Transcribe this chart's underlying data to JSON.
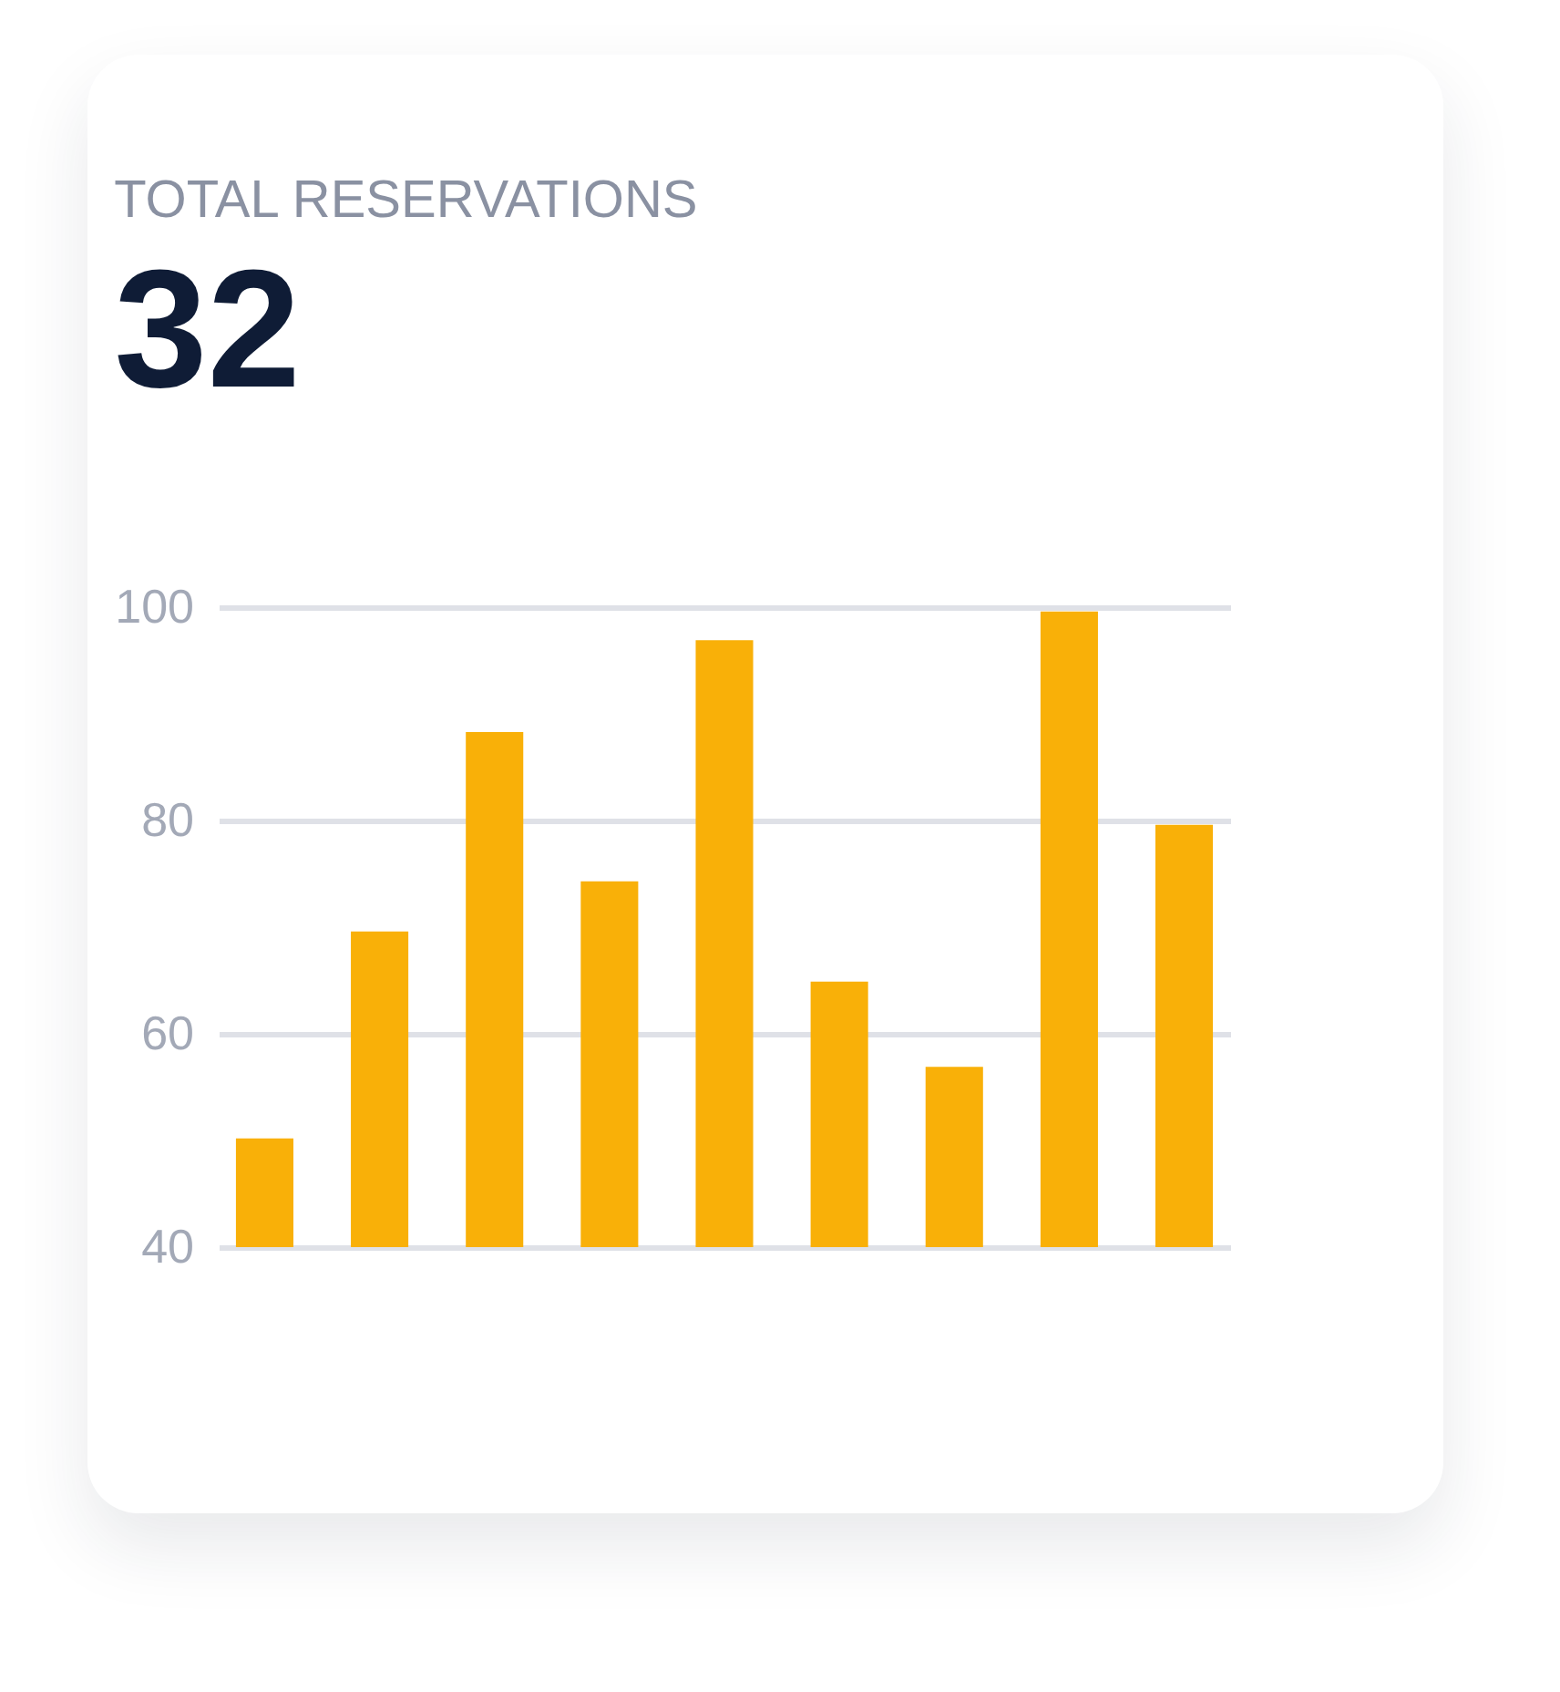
{
  "chart_data": {
    "type": "bar",
    "title": "TOTAL RESERVATIONS",
    "subtitle": "32",
    "categories": [
      null,
      null,
      null,
      null,
      null,
      null,
      null,
      null,
      null
    ],
    "values": [
      50.2,
      69.6,
      88.3,
      74.3,
      96.9,
      64.9,
      56.9,
      99.6,
      79.6
    ],
    "color": "#f9b008",
    "ylim": [
      40,
      100
    ],
    "yticks": [
      40,
      60,
      80,
      100
    ],
    "grid": "y",
    "tick_labels": "y"
  }
}
